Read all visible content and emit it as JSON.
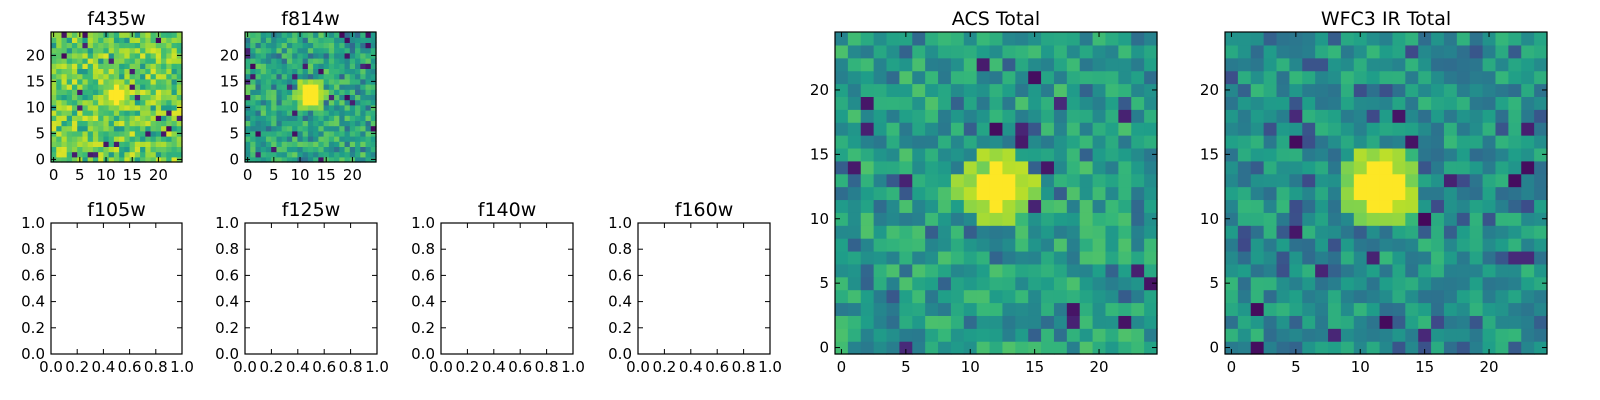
{
  "chart_data": [
    {
      "type": "heatmap",
      "title": "f435w",
      "xticks": [
        "0",
        "5",
        "10",
        "15",
        "20"
      ],
      "yticks": [
        "0",
        "5",
        "10",
        "15",
        "20"
      ],
      "xlim": [
        -0.5,
        24.5
      ],
      "ylim": [
        -0.5,
        24.5
      ],
      "grid_size": 25,
      "source_center": [
        12,
        12.5
      ],
      "source_radius": 1.6,
      "colormap": "viridis",
      "background_level": 0.78
    },
    {
      "type": "heatmap",
      "title": "f814w",
      "xticks": [
        "0",
        "5",
        "10",
        "15",
        "20"
      ],
      "yticks": [
        "0",
        "5",
        "10",
        "15",
        "20"
      ],
      "xlim": [
        -0.5,
        24.5
      ],
      "ylim": [
        -0.5,
        24.5
      ],
      "grid_size": 25,
      "source_center": [
        12,
        12.5
      ],
      "source_radius": 2.0,
      "colormap": "viridis",
      "background_level": 0.6
    },
    {
      "type": "empty",
      "title": "f105w",
      "xticks": [
        "0.0",
        "0.2",
        "0.4",
        "0.6",
        "0.8",
        "1.0"
      ],
      "yticks": [
        "0.0",
        "0.2",
        "0.4",
        "0.6",
        "0.8",
        "1.0"
      ],
      "xlim": [
        0,
        1
      ],
      "ylim": [
        0,
        1
      ]
    },
    {
      "type": "empty",
      "title": "f125w",
      "xticks": [
        "0.0",
        "0.2",
        "0.4",
        "0.6",
        "0.8",
        "1.0"
      ],
      "yticks": [
        "0.0",
        "0.2",
        "0.4",
        "0.6",
        "0.8",
        "1.0"
      ],
      "xlim": [
        0,
        1
      ],
      "ylim": [
        0,
        1
      ]
    },
    {
      "type": "empty",
      "title": "f140w",
      "xticks": [
        "0.0",
        "0.2",
        "0.4",
        "0.6",
        "0.8",
        "1.0"
      ],
      "yticks": [
        "0.0",
        "0.2",
        "0.4",
        "0.6",
        "0.8",
        "1.0"
      ],
      "xlim": [
        0,
        1
      ],
      "ylim": [
        0,
        1
      ]
    },
    {
      "type": "empty",
      "title": "f160w",
      "xticks": [
        "0.0",
        "0.2",
        "0.4",
        "0.6",
        "0.8",
        "1.0"
      ],
      "yticks": [
        "0.0",
        "0.2",
        "0.4",
        "0.6",
        "0.8",
        "1.0"
      ],
      "xlim": [
        0,
        1
      ],
      "ylim": [
        0,
        1
      ]
    },
    {
      "type": "heatmap",
      "title": "ACS Total",
      "xticks": [
        "0",
        "5",
        "10",
        "15",
        "20"
      ],
      "yticks": [
        "0",
        "5",
        "10",
        "15",
        "20"
      ],
      "xlim": [
        -0.5,
        24.5
      ],
      "ylim": [
        -0.5,
        24.5
      ],
      "grid_size": 25,
      "source_center": [
        12,
        12.5
      ],
      "source_radius": 1.8,
      "colormap": "viridis",
      "background_level": 0.55
    },
    {
      "type": "heatmap",
      "title": "WFC3 IR Total",
      "xticks": [
        "0",
        "5",
        "10",
        "15",
        "20"
      ],
      "yticks": [
        "0",
        "5",
        "10",
        "15",
        "20"
      ],
      "xlim": [
        -0.5,
        24.5
      ],
      "ylim": [
        -0.5,
        24.5
      ],
      "grid_size": 25,
      "source_center": [
        11.7,
        12.5
      ],
      "source_radius": 1.8,
      "colormap": "viridis",
      "background_level": 0.5
    }
  ]
}
